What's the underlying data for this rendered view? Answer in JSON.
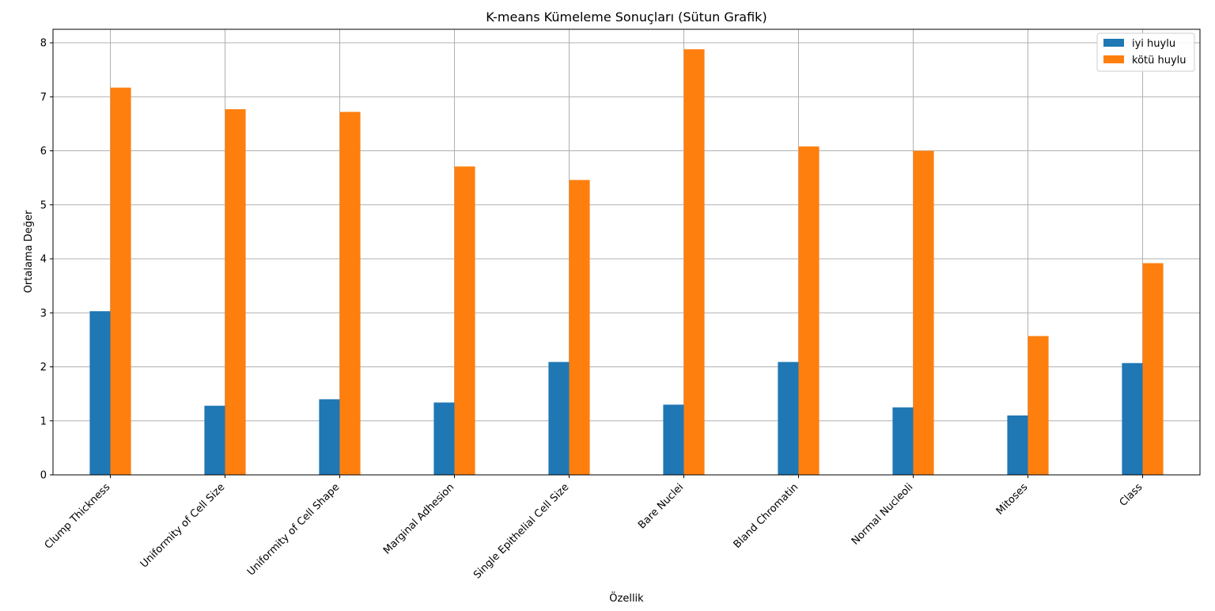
{
  "chart_data": {
    "type": "bar",
    "title": "K-means Kümeleme Sonuçları (Sütun Grafik)",
    "xlabel": "Özellik",
    "ylabel": "Ortalama Değer",
    "categories": [
      "Clump Thickness",
      "Uniformity of Cell Size",
      "Uniformity of Cell Shape",
      "Marginal Adhesion",
      "Single Epithelial Cell Size",
      "Bare Nuclei",
      "Bland Chromatin",
      "Normal Nucleoli",
      "Mitoses",
      "Class"
    ],
    "series": [
      {
        "name": "iyi huylu",
        "color": "#1f77b4",
        "values": [
          3.03,
          1.28,
          1.4,
          1.34,
          2.09,
          1.3,
          2.09,
          1.25,
          1.1,
          2.07
        ]
      },
      {
        "name": "kötü huylu",
        "color": "#ff7f0e",
        "values": [
          7.17,
          6.77,
          6.72,
          5.71,
          5.46,
          7.88,
          6.08,
          6.0,
          2.57,
          3.92
        ]
      }
    ],
    "ylim": [
      0,
      8.25
    ],
    "yticks": [
      0,
      1,
      2,
      3,
      4,
      5,
      6,
      7,
      8
    ],
    "grid": true,
    "legend_position": "top-right"
  }
}
